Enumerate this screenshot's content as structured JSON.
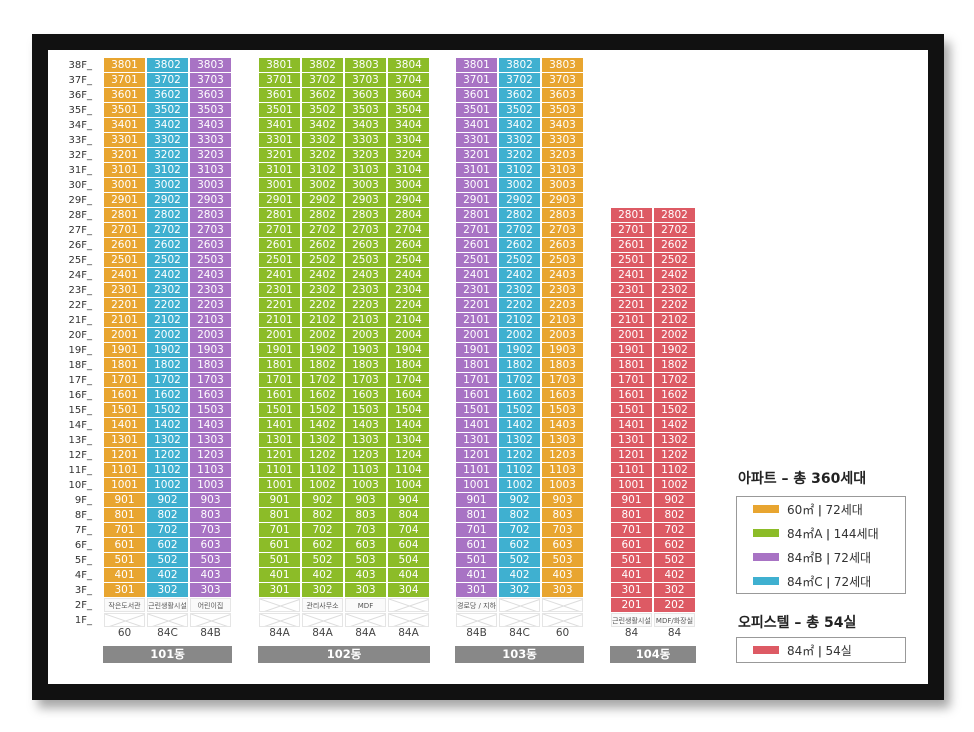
{
  "colors": {
    "60": "#e8a530",
    "84A": "#8cbc28",
    "84B": "#a873c4",
    "84C": "#3fb0d0",
    "op": "#dd5a64"
  },
  "floors": [
    "38F",
    "37F",
    "36F",
    "35F",
    "34F",
    "33F",
    "32F",
    "31F",
    "30F",
    "29F",
    "28F",
    "27F",
    "26F",
    "25F",
    "24F",
    "23F",
    "22F",
    "21F",
    "20F",
    "19F",
    "18F",
    "17F",
    "16F",
    "15F",
    "14F",
    "13F",
    "12F",
    "11F",
    "10F",
    "9F",
    "8F",
    "7F",
    "6F",
    "5F",
    "4F",
    "3F",
    "2F",
    "1F"
  ],
  "buildings": [
    {
      "name": "101동",
      "types": [
        "60",
        "84C",
        "84B"
      ],
      "top": 38,
      "bottom": 3,
      "facilities": [
        "작은도서관",
        "근린생활시설",
        "어린이집"
      ]
    },
    {
      "name": "102동",
      "types": [
        "84A",
        "84A",
        "84A",
        "84A"
      ],
      "top": 38,
      "bottom": 3,
      "facilities": [
        "",
        "관리사무소",
        "MDF",
        ""
      ]
    },
    {
      "name": "103동",
      "types": [
        "84B",
        "84C",
        "60"
      ],
      "top": 38,
      "bottom": 3,
      "facilities": [
        "경로당 / 지하층주민집회시설",
        "",
        ""
      ]
    },
    {
      "name": "104동",
      "types": [
        "84",
        "84"
      ],
      "top": 28,
      "bottom": 2,
      "facilities": [
        "근린생활시설",
        "MDF/화장실"
      ]
    }
  ],
  "legend": {
    "apt_title": "아파트 – 총 360세대",
    "apt_rows": [
      {
        "color": "60",
        "area": "60㎡",
        "count": "ǀ  72세대"
      },
      {
        "color": "84A",
        "area": "84㎡A",
        "count": "ǀ  144세대"
      },
      {
        "color": "84B",
        "area": "84㎡B",
        "count": "ǀ  72세대"
      },
      {
        "color": "84C",
        "area": "84㎡C",
        "count": "ǀ  72세대"
      }
    ],
    "op_title": "오피스텔 – 총 54실",
    "op_rows": [
      {
        "color": "op",
        "area": "84㎡",
        "count": "ǀ  54실"
      }
    ]
  }
}
